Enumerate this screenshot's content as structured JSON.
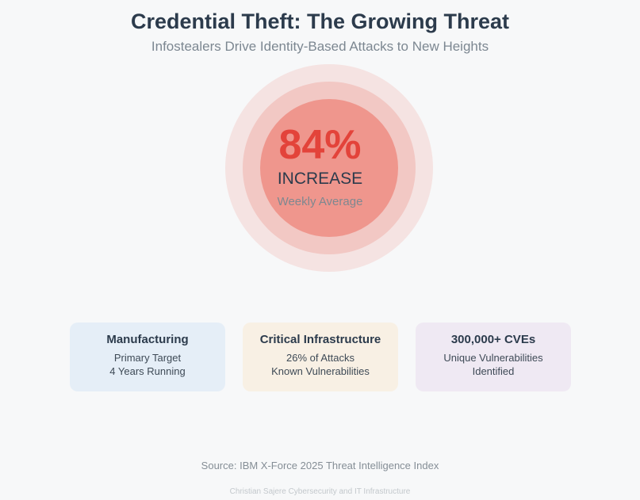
{
  "header": {
    "title": "Credential Theft: The Growing Threat",
    "subtitle": "Infostealers Drive Identity-Based Attacks to New Heights"
  },
  "highlight": {
    "value": "84%",
    "label": "INCREASE",
    "sublabel": "Weekly Average"
  },
  "cards": [
    {
      "title": "Manufacturing",
      "lines": [
        "Primary Target",
        "4 Years Running"
      ]
    },
    {
      "title": "Critical Infrastructure",
      "lines": [
        "26% of Attacks",
        "Known Vulnerabilities"
      ]
    },
    {
      "title": "300,000+ CVEs",
      "lines": [
        "Unique Vulnerabilities",
        "Identified"
      ]
    }
  ],
  "footer": {
    "source": "Source: IBM X-Force 2025 Threat Intelligence Index",
    "credit": "Christian Sajere Cybersecurity and IT Infrastructure"
  },
  "colors": {
    "accent": "#e3433a",
    "ring_inner": "#ef968d",
    "ring_mid": "#f2c8c4",
    "ring_outer": "#f5e3e2",
    "card_blue": "#e5eef7",
    "card_orange": "#f8f0e4",
    "card_purple": "#efe9f3"
  }
}
